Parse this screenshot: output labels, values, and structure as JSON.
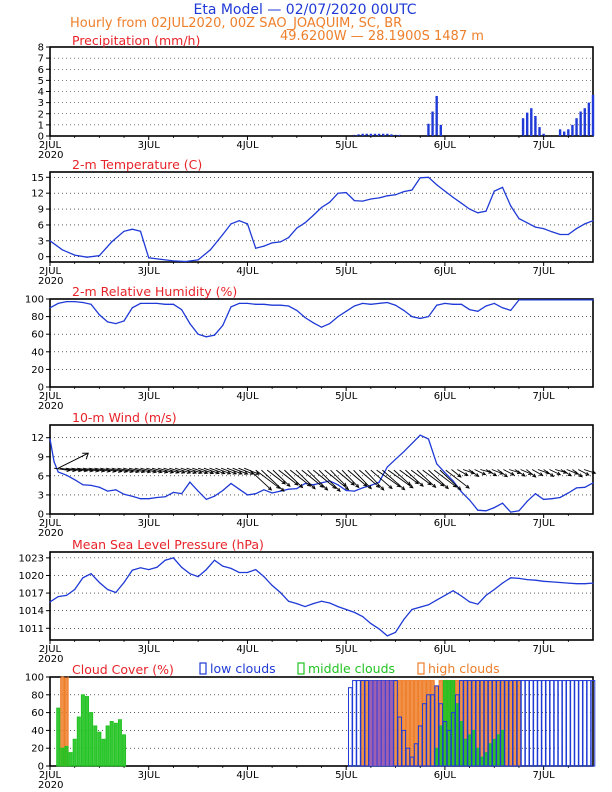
{
  "header": {
    "title": "Eta Model — 02/07/2020 00UTC",
    "line2": "Hourly from 02JUL2020, 00Z   SAO_JOAQUIM, SC, BR",
    "line3": "49.6200W — 28.1900S     1487   m"
  },
  "colors": {
    "title": "#1f3ad6",
    "accent": "#ee7f2b",
    "panel_title": "#e8232a",
    "series": "#1f3ad6",
    "low": "#1f3ad6",
    "middle": "#22c322",
    "high": "#ee7f2b",
    "overlap": "#8a55c8",
    "axes": "#000000"
  },
  "x_axis": {
    "days": [
      "2JUL",
      "3JUL",
      "4JUL",
      "5JUL",
      "6JUL",
      "7JUL"
    ],
    "year": "2020"
  },
  "chart_data": [
    {
      "id": "precip",
      "type": "bar",
      "title": "Precipitation (mm/h)",
      "ylim": [
        0,
        8
      ],
      "yticks": [
        0,
        1,
        2,
        3,
        4,
        5,
        6,
        7,
        8
      ],
      "x_hours": [
        74,
        75,
        76,
        77,
        78,
        79,
        80,
        81,
        82,
        83,
        84,
        85,
        92,
        93,
        94,
        95,
        115,
        116,
        117,
        118,
        119,
        120,
        124,
        125,
        126,
        127,
        128,
        129,
        130,
        131,
        132
      ],
      "values": [
        0.1,
        0.15,
        0.2,
        0.2,
        0.2,
        0.2,
        0.2,
        0.2,
        0.2,
        0.15,
        0.1,
        0.1,
        1.1,
        2.2,
        3.6,
        1.0,
        1.6,
        2.1,
        2.5,
        1.8,
        0.8,
        0.2,
        0.6,
        0.4,
        0.6,
        1.0,
        1.6,
        2.2,
        2.5,
        3.0,
        3.7
      ]
    },
    {
      "id": "temp",
      "type": "line",
      "title": "2-m Temperature (C)",
      "ylim": [
        -1,
        16
      ],
      "yticks": [
        0,
        3,
        6,
        9,
        12,
        15
      ],
      "x_hours": [
        0,
        3,
        6,
        9,
        12,
        15,
        18,
        20,
        22,
        24,
        27,
        30,
        33,
        36,
        39,
        42,
        44,
        46,
        48,
        50,
        52,
        54,
        56,
        58,
        60,
        62,
        64,
        66,
        68,
        70,
        72,
        74,
        76,
        78,
        80,
        82,
        84,
        86,
        88,
        90,
        92,
        94,
        96,
        98,
        100,
        102,
        104,
        106,
        108,
        110,
        112,
        114,
        116,
        118,
        120,
        122,
        124,
        126,
        128,
        130,
        132
      ],
      "values": [
        3,
        1.3,
        0.3,
        -0.1,
        0.2,
        2.8,
        4.8,
        5.2,
        4.8,
        -0.2,
        -0.5,
        -0.8,
        -0.9,
        -0.6,
        1.3,
        4.2,
        6.2,
        6.8,
        6.2,
        1.6,
        2.0,
        2.6,
        2.8,
        3.6,
        5.4,
        6.4,
        7.8,
        9.3,
        10.3,
        12.0,
        12.1,
        10.6,
        10.5,
        10.9,
        11.1,
        11.5,
        11.7,
        12.3,
        12.6,
        14.9,
        15.0,
        13.6,
        12.4,
        11.2,
        10.1,
        9.0,
        8.3,
        8.6,
        12.4,
        13.1,
        9.6,
        7.2,
        6.4,
        5.6,
        5.3,
        4.7,
        4.2,
        4.2,
        5.3,
        6.2,
        6.8
      ]
    },
    {
      "id": "rh",
      "type": "line",
      "title": "2-m Relative Humidity (%)",
      "ylim": [
        0,
        100
      ],
      "yticks": [
        0,
        20,
        40,
        60,
        80,
        100
      ],
      "x_hours": [
        0,
        2,
        4,
        6,
        8,
        10,
        12,
        14,
        16,
        18,
        20,
        22,
        24,
        26,
        28,
        30,
        32,
        34,
        36,
        38,
        40,
        42,
        44,
        46,
        48,
        50,
        52,
        54,
        56,
        58,
        60,
        62,
        64,
        66,
        68,
        70,
        72,
        74,
        76,
        78,
        80,
        82,
        84,
        86,
        88,
        90,
        92,
        94,
        96,
        98,
        100,
        102,
        104,
        106,
        108,
        110,
        112,
        114,
        116,
        118,
        120,
        122,
        124,
        126,
        128,
        130,
        132
      ],
      "values": [
        90,
        95,
        97,
        97,
        96,
        94,
        82,
        74,
        72,
        75,
        90,
        95,
        95,
        95,
        94,
        94,
        88,
        72,
        60,
        57,
        59,
        70,
        91,
        95,
        95,
        94,
        94,
        93,
        93,
        92,
        87,
        79,
        73,
        68,
        72,
        80,
        86,
        92,
        95,
        94,
        95,
        96,
        93,
        87,
        80,
        78,
        80,
        93,
        95,
        94,
        94,
        88,
        86,
        92,
        95,
        90,
        87,
        99,
        99,
        99,
        99,
        99,
        99,
        99,
        99,
        99,
        99
      ]
    },
    {
      "id": "wind",
      "type": "line",
      "title": "10-m Wind (m/s)",
      "ylim": [
        0,
        14
      ],
      "yticks": [
        0,
        3,
        6,
        9,
        12
      ],
      "x_hours": [
        0,
        1,
        2,
        4,
        6,
        8,
        10,
        12,
        14,
        16,
        18,
        20,
        22,
        24,
        26,
        28,
        30,
        32,
        34,
        36,
        38,
        40,
        42,
        44,
        46,
        48,
        50,
        52,
        54,
        56,
        58,
        60,
        62,
        64,
        66,
        68,
        70,
        72,
        74,
        76,
        78,
        80,
        82,
        84,
        86,
        88,
        90,
        92,
        94,
        96,
        98,
        100,
        102,
        104,
        106,
        108,
        110,
        112,
        114,
        116,
        118,
        120,
        122,
        124,
        126,
        128,
        130,
        132
      ],
      "values": [
        11.8,
        8.2,
        6.6,
        6.1,
        5.4,
        4.6,
        4.5,
        4.2,
        3.6,
        3.8,
        3.1,
        2.8,
        2.4,
        2.4,
        2.6,
        2.7,
        3.4,
        3.2,
        5.0,
        3.6,
        2.3,
        2.8,
        3.7,
        4.8,
        3.9,
        3.0,
        3.2,
        3.8,
        3.3,
        3.6,
        3.9,
        4.0,
        4.8,
        4.6,
        4.9,
        5.2,
        4.6,
        3.7,
        3.6,
        4.1,
        4.5,
        5.0,
        7.4,
        8.6,
        9.8,
        11.1,
        12.4,
        11.8,
        7.9,
        6.5,
        5.2,
        3.5,
        2.2,
        0.6,
        0.5,
        1.0,
        1.7,
        0.3,
        0.5,
        2.0,
        3.2,
        2.3,
        2.4,
        2.6,
        3.3,
        4.1,
        4.2,
        4.9
      ]
    },
    {
      "id": "mslp",
      "type": "line",
      "title": "Mean Sea Level Pressure (hPa)",
      "ylim": [
        1009,
        1024
      ],
      "yticks": [
        1011,
        1014,
        1017,
        1020,
        1023
      ],
      "x_hours": [
        0,
        2,
        4,
        6,
        8,
        10,
        12,
        14,
        16,
        18,
        20,
        22,
        24,
        26,
        28,
        30,
        32,
        34,
        36,
        38,
        40,
        42,
        44,
        46,
        48,
        50,
        52,
        54,
        56,
        58,
        60,
        62,
        64,
        66,
        68,
        70,
        72,
        74,
        76,
        78,
        80,
        82,
        84,
        86,
        88,
        90,
        92,
        94,
        96,
        98,
        100,
        102,
        104,
        106,
        108,
        110,
        112,
        114,
        116,
        118,
        120,
        122,
        124,
        126,
        128,
        130,
        132
      ],
      "values": [
        1015.5,
        1016.4,
        1016.6,
        1017.6,
        1019.6,
        1020.3,
        1018.8,
        1017.6,
        1017.1,
        1018.8,
        1020.9,
        1021.3,
        1021.0,
        1021.4,
        1022.6,
        1023.0,
        1021.4,
        1020.3,
        1019.8,
        1021.0,
        1022.6,
        1021.6,
        1021.2,
        1020.5,
        1020.5,
        1021.0,
        1019.8,
        1018.3,
        1017.1,
        1015.6,
        1015.2,
        1014.7,
        1015.2,
        1015.6,
        1015.3,
        1014.7,
        1014.2,
        1013.7,
        1013.0,
        1011.8,
        1010.9,
        1009.7,
        1010.3,
        1012.5,
        1014.2,
        1014.6,
        1015.0,
        1015.8,
        1016.6,
        1017.4,
        1016.5,
        1015.5,
        1015.1,
        1016.6,
        1017.6,
        1018.7,
        1019.6,
        1019.5,
        1019.3,
        1019.2,
        1019.0,
        1018.9,
        1018.8,
        1018.7,
        1018.6,
        1018.6,
        1018.7
      ]
    },
    {
      "id": "cloud",
      "type": "bar",
      "title": "Cloud Cover (%)",
      "ylim": [
        0,
        100
      ],
      "yticks": [
        0,
        20,
        40,
        60,
        80,
        100
      ],
      "legend": [
        "low clouds",
        "middle clouds",
        "high clouds"
      ],
      "series": [
        {
          "name": "low clouds",
          "x_hours": [
            73,
            74,
            75,
            76,
            77,
            78,
            79,
            80,
            81,
            82,
            83,
            84,
            85,
            86,
            87,
            88,
            89,
            90,
            91,
            92,
            93,
            94,
            95,
            96,
            97,
            98,
            99,
            100,
            101,
            102,
            103,
            104,
            105,
            106,
            107,
            108,
            109,
            110,
            111,
            112,
            113,
            114,
            115,
            116,
            117,
            118,
            119,
            120,
            121,
            122,
            123,
            124,
            125,
            126,
            127,
            128,
            129,
            130,
            131,
            132
          ],
          "values": [
            88,
            96,
            96,
            96,
            96,
            96,
            96,
            96,
            96,
            96,
            96,
            96,
            55,
            40,
            20,
            10,
            25,
            45,
            70,
            80,
            80,
            90,
            70,
            50,
            40,
            60,
            80,
            96,
            96,
            96,
            96,
            96,
            96,
            96,
            96,
            96,
            96,
            96,
            96,
            96,
            96,
            96,
            96,
            96,
            96,
            96,
            96,
            96,
            96,
            96,
            96,
            96,
            96,
            96,
            96,
            96,
            96,
            96,
            96,
            96
          ]
        },
        {
          "name": "middle clouds",
          "x_hours": [
            2,
            3,
            4,
            5,
            6,
            7,
            8,
            9,
            10,
            11,
            12,
            13,
            14,
            15,
            16,
            17,
            18,
            94,
            95,
            96,
            97,
            98,
            99,
            100,
            101,
            102,
            103,
            104,
            105,
            106,
            107,
            108,
            109,
            110
          ],
          "values": [
            65,
            20,
            22,
            15,
            30,
            55,
            80,
            78,
            60,
            45,
            38,
            30,
            45,
            50,
            48,
            52,
            35,
            20,
            45,
            96,
            96,
            96,
            70,
            50,
            30,
            35,
            40,
            20,
            10,
            15,
            25,
            30,
            35,
            40
          ]
        },
        {
          "name": "high clouds",
          "x_hours": [
            3,
            4,
            76,
            77,
            78,
            79,
            80,
            81,
            82,
            83,
            84,
            85,
            86,
            87,
            88,
            89,
            90,
            91,
            92,
            93,
            94,
            95,
            96,
            97,
            98,
            99,
            100,
            101,
            102,
            103,
            104,
            105,
            106,
            107,
            108,
            109,
            110,
            111,
            112,
            113,
            114
          ],
          "values": [
            100,
            100,
            96,
            96,
            96,
            96,
            96,
            96,
            96,
            96,
            96,
            96,
            96,
            96,
            96,
            96,
            96,
            96,
            96,
            96,
            90,
            96,
            96,
            96,
            96,
            96,
            96,
            96,
            96,
            96,
            96,
            96,
            96,
            96,
            96,
            96,
            96,
            96,
            96,
            96,
            96
          ]
        }
      ]
    }
  ]
}
